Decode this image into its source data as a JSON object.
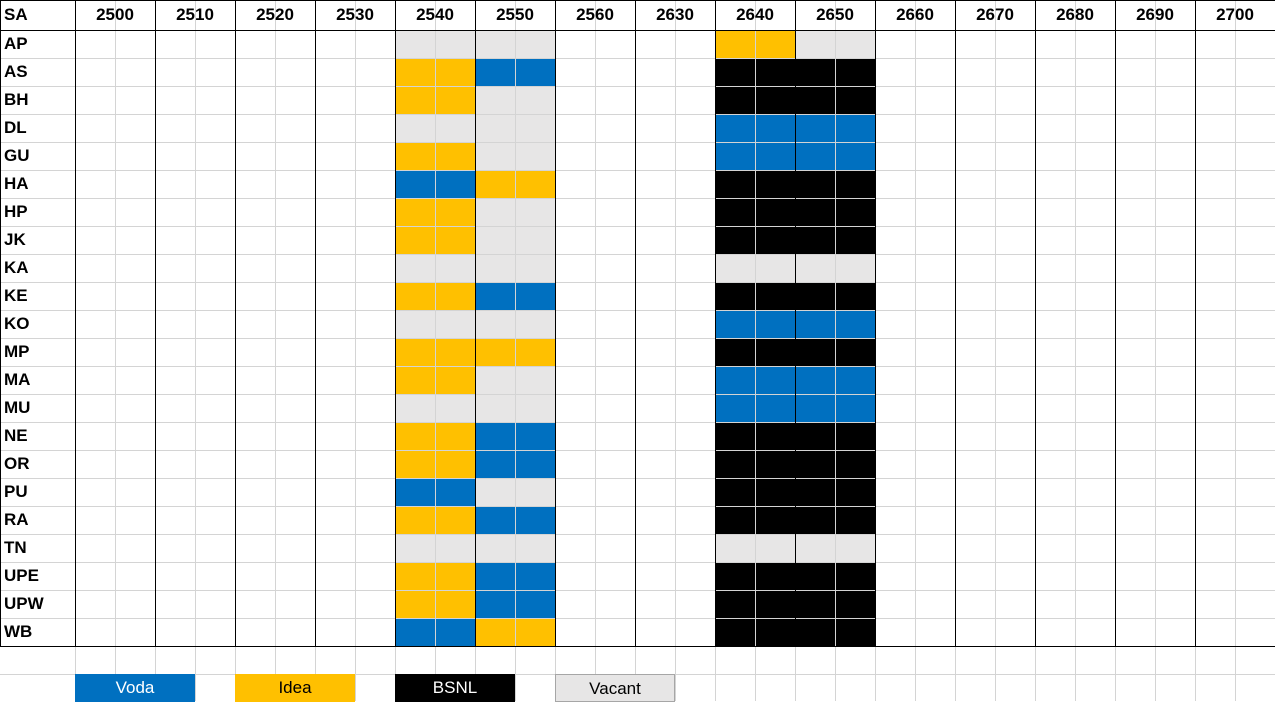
{
  "chart_data": {
    "type": "table",
    "corner_label": "SA",
    "columns": [
      "2500",
      "2510",
      "2520",
      "2530",
      "2540",
      "2550",
      "2560",
      "2630",
      "2640",
      "2650",
      "2660",
      "2670",
      "2680",
      "2690",
      "2700"
    ],
    "rows": [
      "AP",
      "AS",
      "BH",
      "DL",
      "GU",
      "HA",
      "HP",
      "JK",
      "KA",
      "KE",
      "KO",
      "MP",
      "MA",
      "MU",
      "NE",
      "OR",
      "PU",
      "RA",
      "TN",
      "UPE",
      "UPW",
      "WB"
    ],
    "status": {
      "AP": {
        "2540": "Vacant",
        "2550": "Vacant",
        "2640": "Idea",
        "2650": "Vacant"
      },
      "AS": {
        "2540": "Idea",
        "2550": "Voda",
        "2640": "BSNL",
        "2650": "BSNL"
      },
      "BH": {
        "2540": "Idea",
        "2550": "Vacant",
        "2640": "BSNL",
        "2650": "BSNL"
      },
      "DL": {
        "2540": "Vacant",
        "2550": "Vacant",
        "2640": "Voda",
        "2650": "Voda"
      },
      "GU": {
        "2540": "Idea",
        "2550": "Vacant",
        "2640": "Voda",
        "2650": "Voda"
      },
      "HA": {
        "2540": "Voda",
        "2550": "Idea",
        "2640": "BSNL",
        "2650": "BSNL"
      },
      "HP": {
        "2540": "Idea",
        "2550": "Vacant",
        "2640": "BSNL",
        "2650": "BSNL"
      },
      "JK": {
        "2540": "Idea",
        "2550": "Vacant",
        "2640": "BSNL",
        "2650": "BSNL"
      },
      "KA": {
        "2540": "Vacant",
        "2550": "Vacant",
        "2640": "Vacant",
        "2650": "Vacant"
      },
      "KE": {
        "2540": "Idea",
        "2550": "Voda",
        "2640": "BSNL",
        "2650": "BSNL"
      },
      "KO": {
        "2540": "Vacant",
        "2550": "Vacant",
        "2640": "Voda",
        "2650": "Voda"
      },
      "MP": {
        "2540": "Idea",
        "2550": "Idea",
        "2640": "BSNL",
        "2650": "BSNL"
      },
      "MA": {
        "2540": "Idea",
        "2550": "Vacant",
        "2640": "Voda",
        "2650": "Voda"
      },
      "MU": {
        "2540": "Vacant",
        "2550": "Vacant",
        "2640": "Voda",
        "2650": "Voda"
      },
      "NE": {
        "2540": "Idea",
        "2550": "Voda",
        "2640": "BSNL",
        "2650": "BSNL"
      },
      "OR": {
        "2540": "Idea",
        "2550": "Voda",
        "2640": "BSNL",
        "2650": "BSNL"
      },
      "PU": {
        "2540": "Voda",
        "2550": "Vacant",
        "2640": "BSNL",
        "2650": "BSNL"
      },
      "RA": {
        "2540": "Idea",
        "2550": "Voda",
        "2640": "BSNL",
        "2650": "BSNL"
      },
      "TN": {
        "2540": "Vacant",
        "2550": "Vacant",
        "2640": "Vacant",
        "2650": "Vacant"
      },
      "UPE": {
        "2540": "Idea",
        "2550": "Voda",
        "2640": "BSNL",
        "2650": "BSNL"
      },
      "UPW": {
        "2540": "Idea",
        "2550": "Voda",
        "2640": "BSNL",
        "2650": "BSNL"
      },
      "WB": {
        "2540": "Voda",
        "2550": "Idea",
        "2640": "BSNL",
        "2650": "BSNL"
      }
    },
    "legend": [
      {
        "label": "Voda",
        "color": "#0070c0",
        "text_color": "#ffffff"
      },
      {
        "label": "Idea",
        "color": "#ffc000",
        "text_color": "#000000"
      },
      {
        "label": "BSNL",
        "color": "#000000",
        "text_color": "#ffffff"
      },
      {
        "label": "Vacant",
        "color": "#e7e6e6",
        "text_color": "#000000"
      }
    ]
  }
}
